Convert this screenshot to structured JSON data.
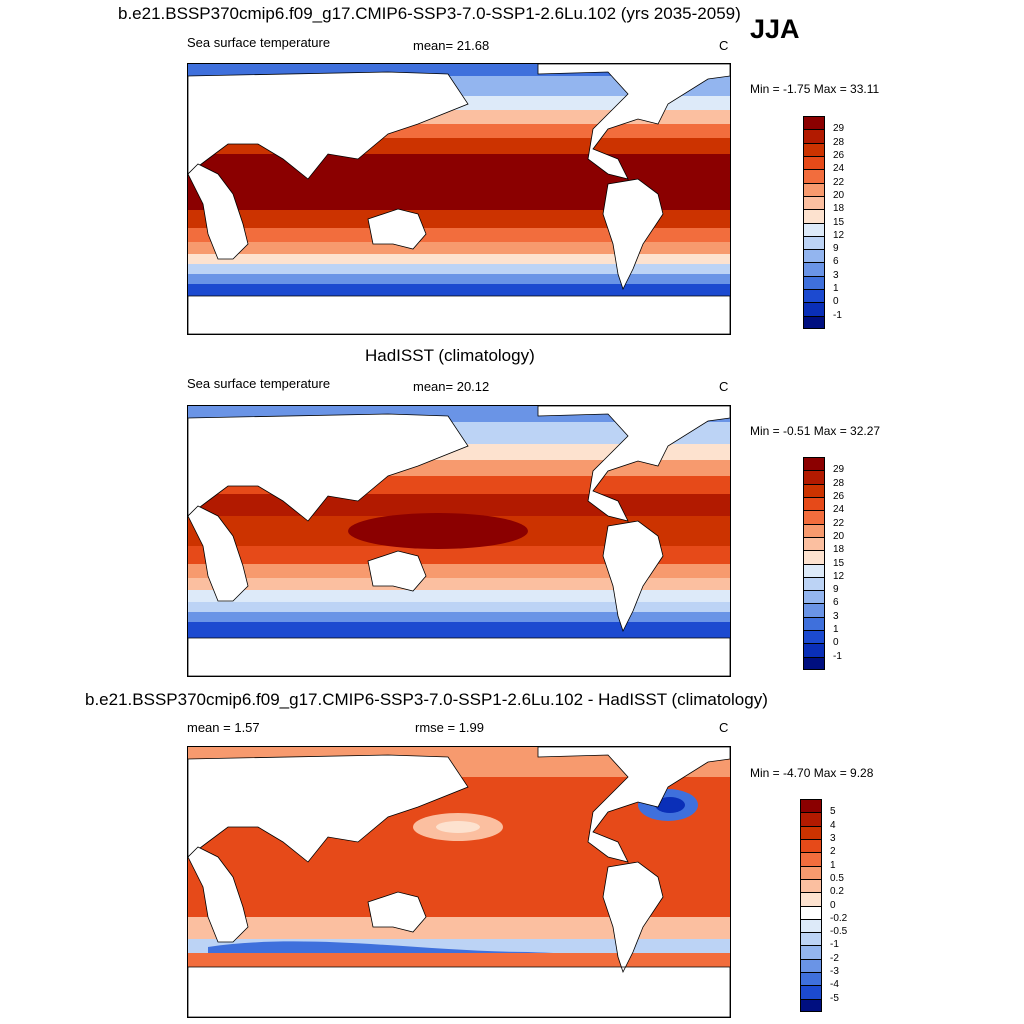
{
  "season": "JJA",
  "panels": [
    {
      "title": "b.e21.BSSP370cmip6.f09_g17.CMIP6-SSP3-7.0-SSP1-2.6Lu.102 (yrs 2035-2059)",
      "left_label": "Sea surface temperature",
      "center_label": "mean=  21.68",
      "units": "C",
      "minmax": "Min =  -1.75 Max =  33.11",
      "colorbar": {
        "labels": [
          "29",
          "28",
          "26",
          "24",
          "22",
          "20",
          "18",
          "15",
          "12",
          "9",
          "6",
          "3",
          "1",
          "0",
          "-1"
        ],
        "colors": [
          "#8b0000",
          "#b21a00",
          "#cc3300",
          "#e64a19",
          "#f26d3d",
          "#f79a6e",
          "#fbbfa0",
          "#fde2cf",
          "#ddeaf9",
          "#bcd3f5",
          "#93b5ef",
          "#6a94e6",
          "#3f70dc",
          "#1c4ad0",
          "#0a2fb8",
          "#000f80"
        ]
      }
    },
    {
      "title": "HadISST (climatology)",
      "left_label": "Sea surface temperature",
      "center_label": "mean=  20.12",
      "units": "C",
      "minmax": "Min =  -0.51 Max =  32.27",
      "colorbar": {
        "labels": [
          "29",
          "28",
          "26",
          "24",
          "22",
          "20",
          "18",
          "15",
          "12",
          "9",
          "6",
          "3",
          "1",
          "0",
          "-1"
        ],
        "colors": [
          "#8b0000",
          "#b21a00",
          "#cc3300",
          "#e64a19",
          "#f26d3d",
          "#f79a6e",
          "#fbbfa0",
          "#fde2cf",
          "#ddeaf9",
          "#bcd3f5",
          "#93b5ef",
          "#6a94e6",
          "#3f70dc",
          "#1c4ad0",
          "#0a2fb8",
          "#000f80"
        ]
      }
    },
    {
      "title": "b.e21.BSSP370cmip6.f09_g17.CMIP6-SSP3-7.0-SSP1-2.6Lu.102 - HadISST (climatology)",
      "left_label": "mean =   1.57",
      "center_label": "rmse =   1.99",
      "units": "C",
      "minmax": "Min =  -4.70 Max =   9.28",
      "colorbar": {
        "labels": [
          "5",
          "4",
          "3",
          "2",
          "1",
          "0.5",
          "0.2",
          "0",
          "-0.2",
          "-0.5",
          "-1",
          "-2",
          "-3",
          "-4",
          "-5"
        ],
        "colors": [
          "#8b0000",
          "#b21a00",
          "#cc3300",
          "#e64a19",
          "#f26d3d",
          "#f79a6e",
          "#fbbfa0",
          "#fde2cf",
          "#ffffff",
          "#ddeaf9",
          "#bcd3f5",
          "#93b5ef",
          "#6a94e6",
          "#3f70dc",
          "#1c4ad0",
          "#000f80"
        ]
      }
    }
  ]
}
